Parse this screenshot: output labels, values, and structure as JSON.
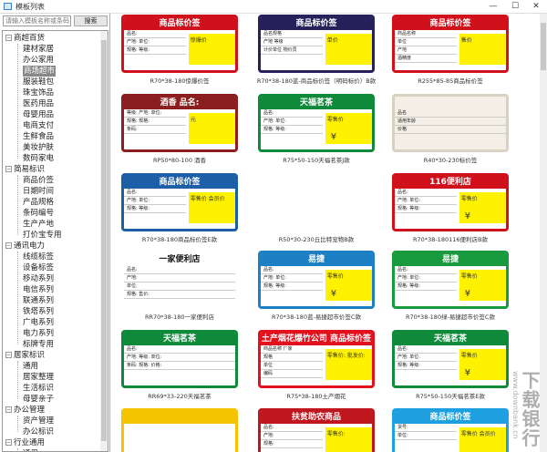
{
  "window": {
    "title": "模板列表",
    "controls": [
      "—",
      "☐",
      "✕"
    ]
  },
  "search": {
    "placeholder": "请输入模板名称或条码",
    "button": "搜索"
  },
  "tree": [
    {
      "label": "商超百货",
      "children": [
        "建材家居",
        "办公家用",
        "商场超市",
        "服装鞋包",
        "珠宝饰品",
        "医药用品",
        "母婴用品",
        "电商支付",
        "生鲜食品",
        "美妆护肤",
        "数码家电"
      ]
    },
    {
      "label": "简易标识",
      "children": [
        "商品价签",
        "日期时间",
        "产品规格",
        "条码编号",
        "生产产地",
        "打价宝专用"
      ]
    },
    {
      "label": "通讯电力",
      "children": [
        "线缆标签",
        "设备标签",
        "移动系列",
        "电信系列",
        "联通系列",
        "铁塔系列",
        "广电系列",
        "电力系列",
        "标牌专用"
      ]
    },
    {
      "label": "居家标识",
      "children": [
        "通用",
        "居家整理",
        "生活标识",
        "母婴亲子"
      ]
    },
    {
      "label": "办公管理",
      "children": [
        "资产管理",
        "办公标识"
      ]
    },
    {
      "label": "行业通用",
      "children": [
        "通用"
      ]
    }
  ],
  "selected": "商场超市",
  "templates": [
    {
      "caption": "R70*38-180惊爆价签",
      "header": "商品标价签",
      "color": "#d0101a",
      "fields": [
        "品名:",
        "产地:   单位:",
        "规格:   等级:"
      ],
      "price": "惊爆价"
    },
    {
      "caption": "R70*38-180蓝-商品标价签（明码标价）B款",
      "header": "商品标价签",
      "color": "#26215a",
      "fields": [
        "品名规格",
        "产地   等级",
        "计价单位   物价员"
      ],
      "price": "单价"
    },
    {
      "caption": "R255*85-85商品标价签",
      "header": "商品标价签",
      "color": "#d0101a",
      "fields": [
        "商品名称",
        "单位",
        "产地",
        "酒精度"
      ],
      "price": "售价"
    },
    {
      "caption": "RP50*80-100 酒香",
      "header": "酒香  品名:",
      "color": "#8b1f1f",
      "fields": [
        "等级:  产地:  单位:",
        "规格:  规格:",
        "条码:"
      ],
      "price": "元"
    },
    {
      "caption": "R75*50-150天福茗茶J款",
      "header": "天福茗茶",
      "color": "#0f8a3a",
      "fields": [
        "品名:",
        "产地:   单位:",
        "规格:   等级:"
      ],
      "price": "零售价",
      "yen": "¥"
    },
    {
      "caption": "R40*30-230标价签",
      "header": "",
      "color": "#f3efe6",
      "fields": [
        "品名",
        "适用年龄",
        "价格"
      ],
      "price": ""
    },
    {
      "caption": "R70*38-180商品标价签E款",
      "header": "商品标价签",
      "color": "#1d5ea8",
      "fields": [
        "品名:",
        "产地:   单位:",
        "规格:   等级:"
      ],
      "price": "零售价 会员价"
    },
    {
      "caption": "R50*30-230丘比特宠物B款",
      "header": "",
      "color": "#ffffff",
      "fields": [],
      "price": ""
    },
    {
      "caption": "R70*38-180116便利店B款",
      "header": "116便利店",
      "color": "#d0101a",
      "fields": [
        "品名:",
        "产地:   单位:",
        "规格:   等级:"
      ],
      "price": "零售价",
      "yen": "¥"
    },
    {
      "caption": "RR70*38-180一家便利店",
      "header": "一家便利店",
      "color": "#ffffff",
      "fields": [
        "品名:",
        "产地:",
        "单位:",
        "规格:   售价:"
      ],
      "price": ""
    },
    {
      "caption": "R70*38-180蓝-易捷超市价签C款",
      "header": "易捷",
      "color": "#1d7fc4",
      "fields": [
        "品名:",
        "产地:   单位:",
        "规格:   等级:"
      ],
      "price": "零售价",
      "yen": "¥"
    },
    {
      "caption": "R70*38-180绿-易捷超市价签C款",
      "header": "易捷",
      "color": "#1a9a3e",
      "fields": [
        "品名:",
        "产地:   单位:",
        "规格:   等级:"
      ],
      "price": "零售价",
      "yen": "¥"
    },
    {
      "caption": "RR69*33-220天福茗茶",
      "header": "天福茗茶",
      "color": "#0f8a3a",
      "fields": [
        "品名:",
        "产地:  等级:  单位:",
        "条码:  规格:  价格:"
      ],
      "price": ""
    },
    {
      "caption": "R75*38-180土产烟花",
      "header": "土产烟花爆竹公司 商品标价签",
      "color": "#e3101e",
      "fields": [
        "商品名称   厂家",
        "规格",
        "单位",
        "编码"
      ],
      "price": "零售价: 批发价:"
    },
    {
      "caption": "R75*50-150天福茗茶E款",
      "header": "天福茗茶",
      "color": "#0f8a3a",
      "fields": [
        "品名:",
        "产地:   单位:",
        "规格:   等级:"
      ],
      "price": "零售价",
      "yen": "¥"
    },
    {
      "caption": "",
      "header": "",
      "color": "#f5c400",
      "fields": [],
      "price": ""
    },
    {
      "caption": "",
      "header": "扶贫助农商品",
      "color": "#c0161d",
      "fields": [
        "品名:",
        "产地:",
        "规格:"
      ],
      "price": "零售价:"
    },
    {
      "caption": "",
      "header": "商品标价签",
      "color": "#1ea0e0",
      "fields": [
        "货号:",
        "单位:"
      ],
      "price": "零售价 会员价"
    }
  ],
  "watermark": {
    "brand": "下载银行",
    "url": "www.downbank.cn"
  }
}
